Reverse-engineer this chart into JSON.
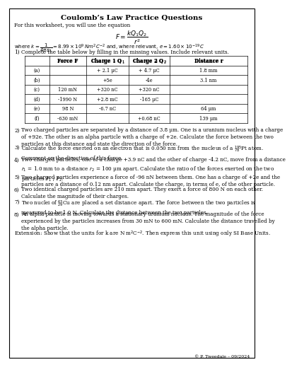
{
  "title": "Coulomb’s Law Practice Questions",
  "intro": "For this worksheet, you will use the equation",
  "equation_display": "$F=\\dfrac{kQ_1Q_2}{r^2}$",
  "where_text": "where $k=\\dfrac{1}{4\\pi\\varepsilon_0}=8.99\\times10^9\\,Nm^2C^{-2}$ and, where relevant, $e=1.60\\times10^{-19}\\,C$",
  "table_headers": [
    "",
    "Force F",
    "Charge 1 Q$_1$",
    "Charge 2 Q$_2$",
    "Distance r"
  ],
  "table_rows": [
    [
      "(a)",
      "",
      "+ 2.1 μC",
      "+ 4.7 μC",
      "1.8 mm"
    ],
    [
      "(b)",
      "",
      "+5e",
      "-4e",
      "3.1 nm"
    ],
    [
      "(c)",
      "120 mN",
      "+320 nC",
      "+320 nC",
      ""
    ],
    [
      "(d)",
      "-1990 N",
      "+2.8 mC",
      "-165 μC",
      ""
    ],
    [
      "(e)",
      "98 N",
      "-6.7 nC",
      "",
      "64 μm"
    ],
    [
      "(f)",
      "-630 mN",
      "",
      "+0.68 nC",
      "139 μm"
    ]
  ],
  "q2": "Two charged particles are separated by a distance of 3.8 μm. One is a uranium nucleus with a charge\nof +92e. The other is an alpha particle with a charge of +2e. Calculate the force between the two\nparticles at this distance and state the direction of the force.",
  "q3": "Calculate the force exerted on an electron that is 0.050 nm from the nucleus of a $^{195}_{78}$Pt atom.\nComment on the direction of this force.",
  "q4": "Two charged particles, one of a charge +3.9 nC and the other of charge -4.2 nC, move from a distance\n$r_1$ = 1.0 mm to a distance $r_2$ = 100 μm apart. Calculate the ratio of the forces exerted on the two\nparticles $F_1$ / $F_2$.",
  "q5": "Two charged particles experience a force of -96 nN between them. One has a charge of +2e and the\nparticles are a distance of 0.12 nm apart. Calculate the charge, in terms of e, of the other particle.",
  "q6": "Two identical charged particles are 210 mm apart. They exert a force of 800 N on each other.\nCalculate the magnitude of their charges.",
  "q7": "Two nuclei of $^{63}_{29}$Cu are placed a set distance apart. The force between the two particles is\nmeasured to be 1.0 N. Calculate the distance between the two particles.",
  "q8": "An alpha particle is moving towards a stationary uranium nucleus. The magnitude of the force\nexperienced by the particles increases from 30 mN to 600 mN. Calculate the distance travelled by\nthe alpha particle.",
  "extension": "Extension: Show that the units for k are N m$^2$C$^{-2}$. Then express this unit using only SI Base Units.",
  "footer": "© P. Tweedale – 09/2024",
  "bg_color": "#ffffff",
  "text_color": "#000000"
}
